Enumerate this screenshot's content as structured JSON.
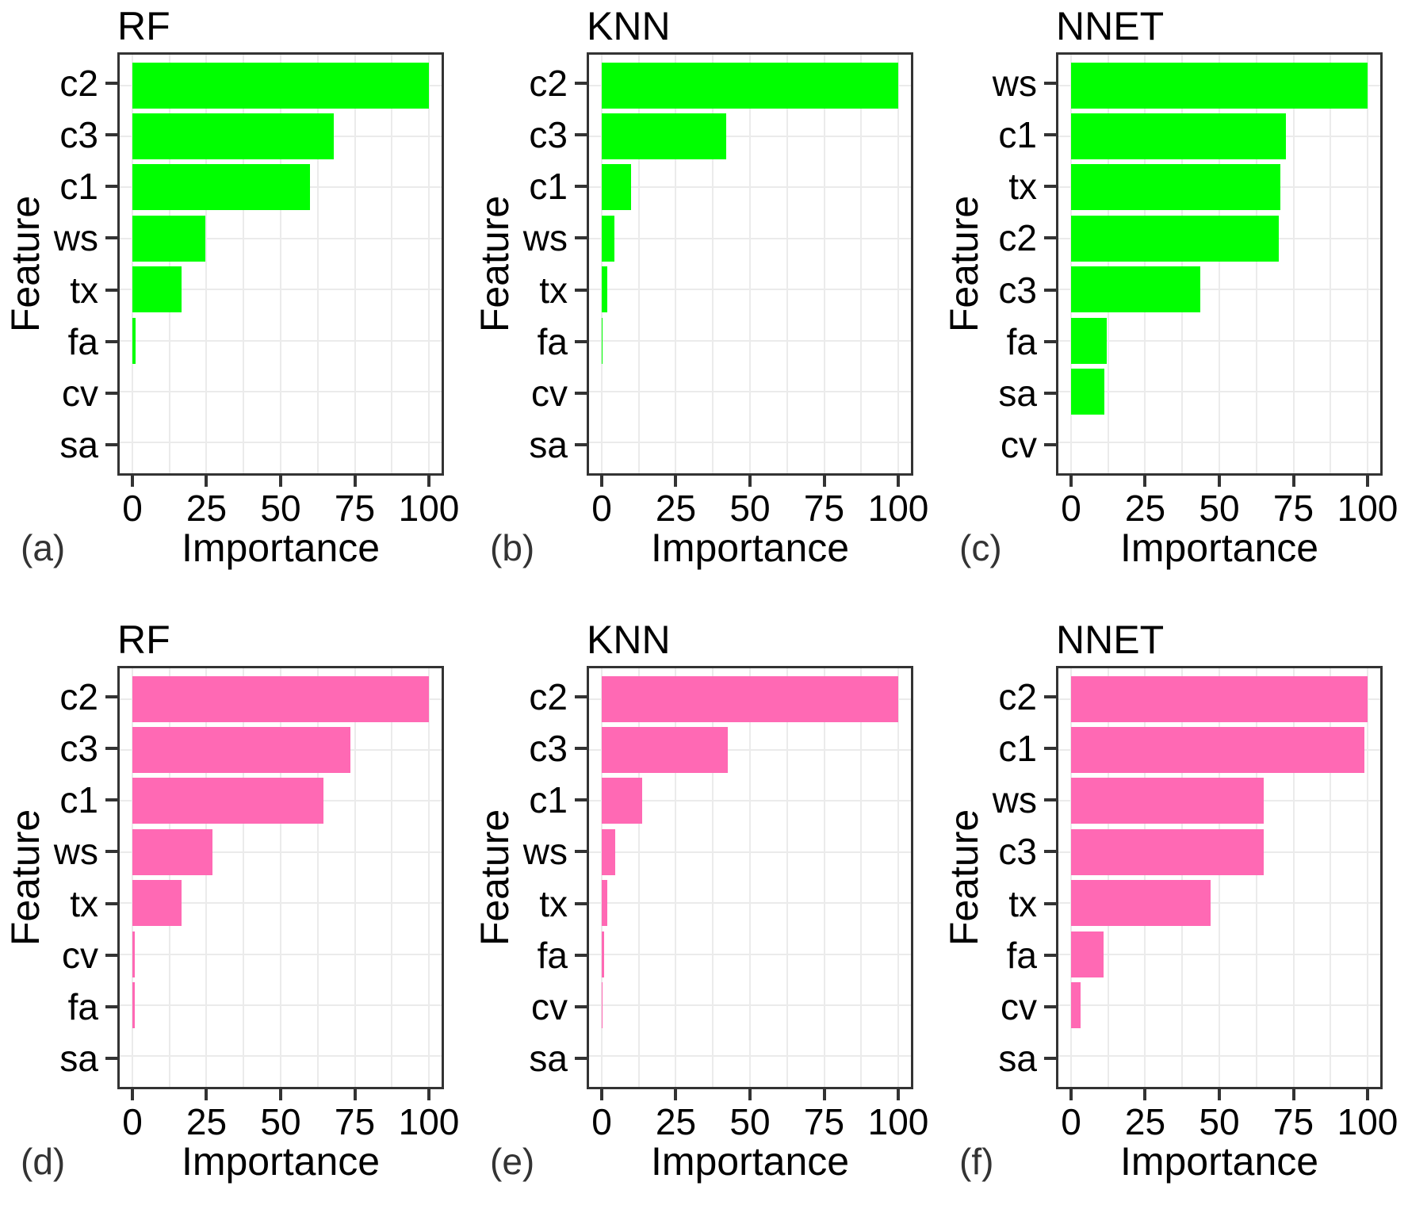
{
  "figure": {
    "background": "#FFFFFF",
    "grid_color": "#EBEBEB",
    "border_color": "#333333",
    "tick_color": "#333333",
    "text_color": "#000000",
    "green_accent": "#00FF00",
    "pink_accent": "#FF69B4"
  },
  "chart_data": [
    {
      "panel": "(a)",
      "type": "bar",
      "orientation": "horizontal",
      "title": "RF",
      "xlabel": "Importance",
      "ylabel": "Feature",
      "bar_color": "#00FF00",
      "xlim": [
        0,
        100
      ],
      "xticks": [
        0,
        25,
        50,
        75,
        100
      ],
      "grid": true,
      "categories": [
        "c2",
        "c3",
        "c1",
        "ws",
        "tx",
        "fa",
        "cv",
        "sa"
      ],
      "values": [
        100,
        68,
        60,
        24.5,
        16.5,
        1,
        0,
        0
      ]
    },
    {
      "panel": "(b)",
      "type": "bar",
      "orientation": "horizontal",
      "title": "KNN",
      "xlabel": "Importance",
      "ylabel": "Feature",
      "bar_color": "#00FF00",
      "xlim": [
        0,
        100
      ],
      "xticks": [
        0,
        25,
        50,
        75,
        100
      ],
      "grid": true,
      "categories": [
        "c2",
        "c3",
        "c1",
        "ws",
        "tx",
        "fa",
        "cv",
        "sa"
      ],
      "values": [
        100,
        42,
        10,
        4.4,
        1.9,
        0.4,
        0,
        0
      ]
    },
    {
      "panel": "(c)",
      "type": "bar",
      "orientation": "horizontal",
      "title": "NNET",
      "xlabel": "Importance",
      "ylabel": "Feature",
      "bar_color": "#00FF00",
      "xlim": [
        0,
        100
      ],
      "xticks": [
        0,
        25,
        50,
        75,
        100
      ],
      "grid": true,
      "categories": [
        "ws",
        "c1",
        "tx",
        "c2",
        "c3",
        "fa",
        "sa",
        "cv"
      ],
      "values": [
        100,
        72.5,
        70.5,
        70,
        43.5,
        12,
        11.3,
        0
      ]
    },
    {
      "panel": "(d)",
      "type": "bar",
      "orientation": "horizontal",
      "title": "RF",
      "xlabel": "Importance",
      "ylabel": "Feature",
      "bar_color": "#FF69B4",
      "xlim": [
        0,
        100
      ],
      "xticks": [
        0,
        25,
        50,
        75,
        100
      ],
      "grid": true,
      "categories": [
        "c2",
        "c3",
        "c1",
        "ws",
        "tx",
        "cv",
        "fa",
        "sa"
      ],
      "values": [
        100,
        73.5,
        64.5,
        27,
        16.5,
        0.8,
        0.8,
        0
      ]
    },
    {
      "panel": "(e)",
      "type": "bar",
      "orientation": "horizontal",
      "title": "KNN",
      "xlabel": "Importance",
      "ylabel": "Feature",
      "bar_color": "#FF69B4",
      "xlim": [
        0,
        100
      ],
      "xticks": [
        0,
        25,
        50,
        75,
        100
      ],
      "grid": true,
      "categories": [
        "c2",
        "c3",
        "c1",
        "ws",
        "tx",
        "fa",
        "cv",
        "sa"
      ],
      "values": [
        100,
        42.5,
        13.7,
        4.5,
        2,
        0.8,
        0.3,
        0
      ]
    },
    {
      "panel": "(f)",
      "type": "bar",
      "orientation": "horizontal",
      "title": "NNET",
      "xlabel": "Importance",
      "ylabel": "Feature",
      "bar_color": "#FF69B4",
      "xlim": [
        0,
        100
      ],
      "xticks": [
        0,
        25,
        50,
        75,
        100
      ],
      "grid": true,
      "categories": [
        "c2",
        "c1",
        "ws",
        "c3",
        "tx",
        "fa",
        "cv",
        "sa"
      ],
      "values": [
        100,
        99,
        65,
        65,
        47,
        11,
        3.3,
        0
      ]
    }
  ]
}
